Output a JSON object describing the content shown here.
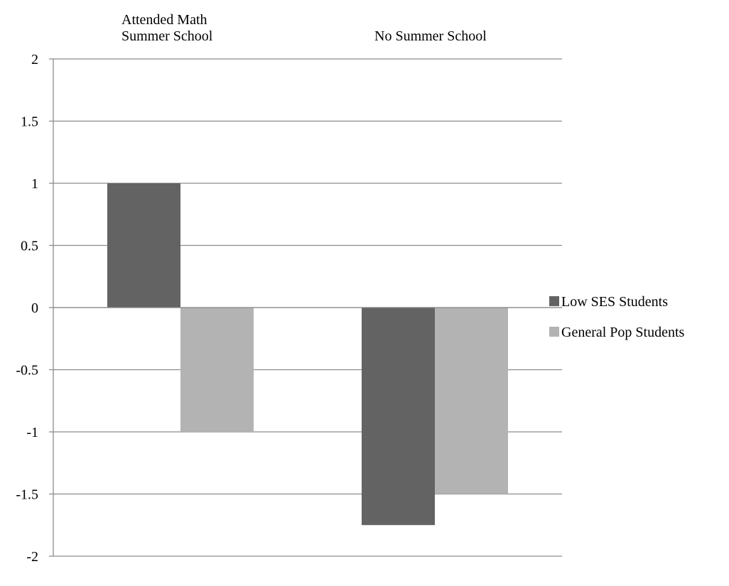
{
  "chart_data": {
    "type": "bar",
    "title": "",
    "xlabel": "",
    "ylabel": "",
    "categories": [
      "Attended Math Summer School",
      "No Summer School"
    ],
    "category_label_lines": [
      [
        "Attended Math",
        "Summer School"
      ],
      [
        "No Summer School"
      ]
    ],
    "x_axis_position": "top",
    "series": [
      {
        "name": "Low SES Students",
        "values": [
          1,
          -1.75
        ],
        "color": "#636363"
      },
      {
        "name": "General Pop Students",
        "values": [
          -1,
          -1.5
        ],
        "color": "#b3b3b3"
      }
    ],
    "ylim": [
      -2,
      2
    ],
    "yticks": [
      2,
      1.5,
      1,
      0.5,
      0,
      -0.5,
      -1,
      -1.5,
      -2
    ],
    "ytick_labels": [
      "2",
      "1.5",
      "1",
      "0.5",
      "0",
      "-0.5",
      "-1",
      "-1.5",
      "-2"
    ],
    "grid": true,
    "legend_position": "right",
    "gridline_color": "#8c8c8c"
  }
}
